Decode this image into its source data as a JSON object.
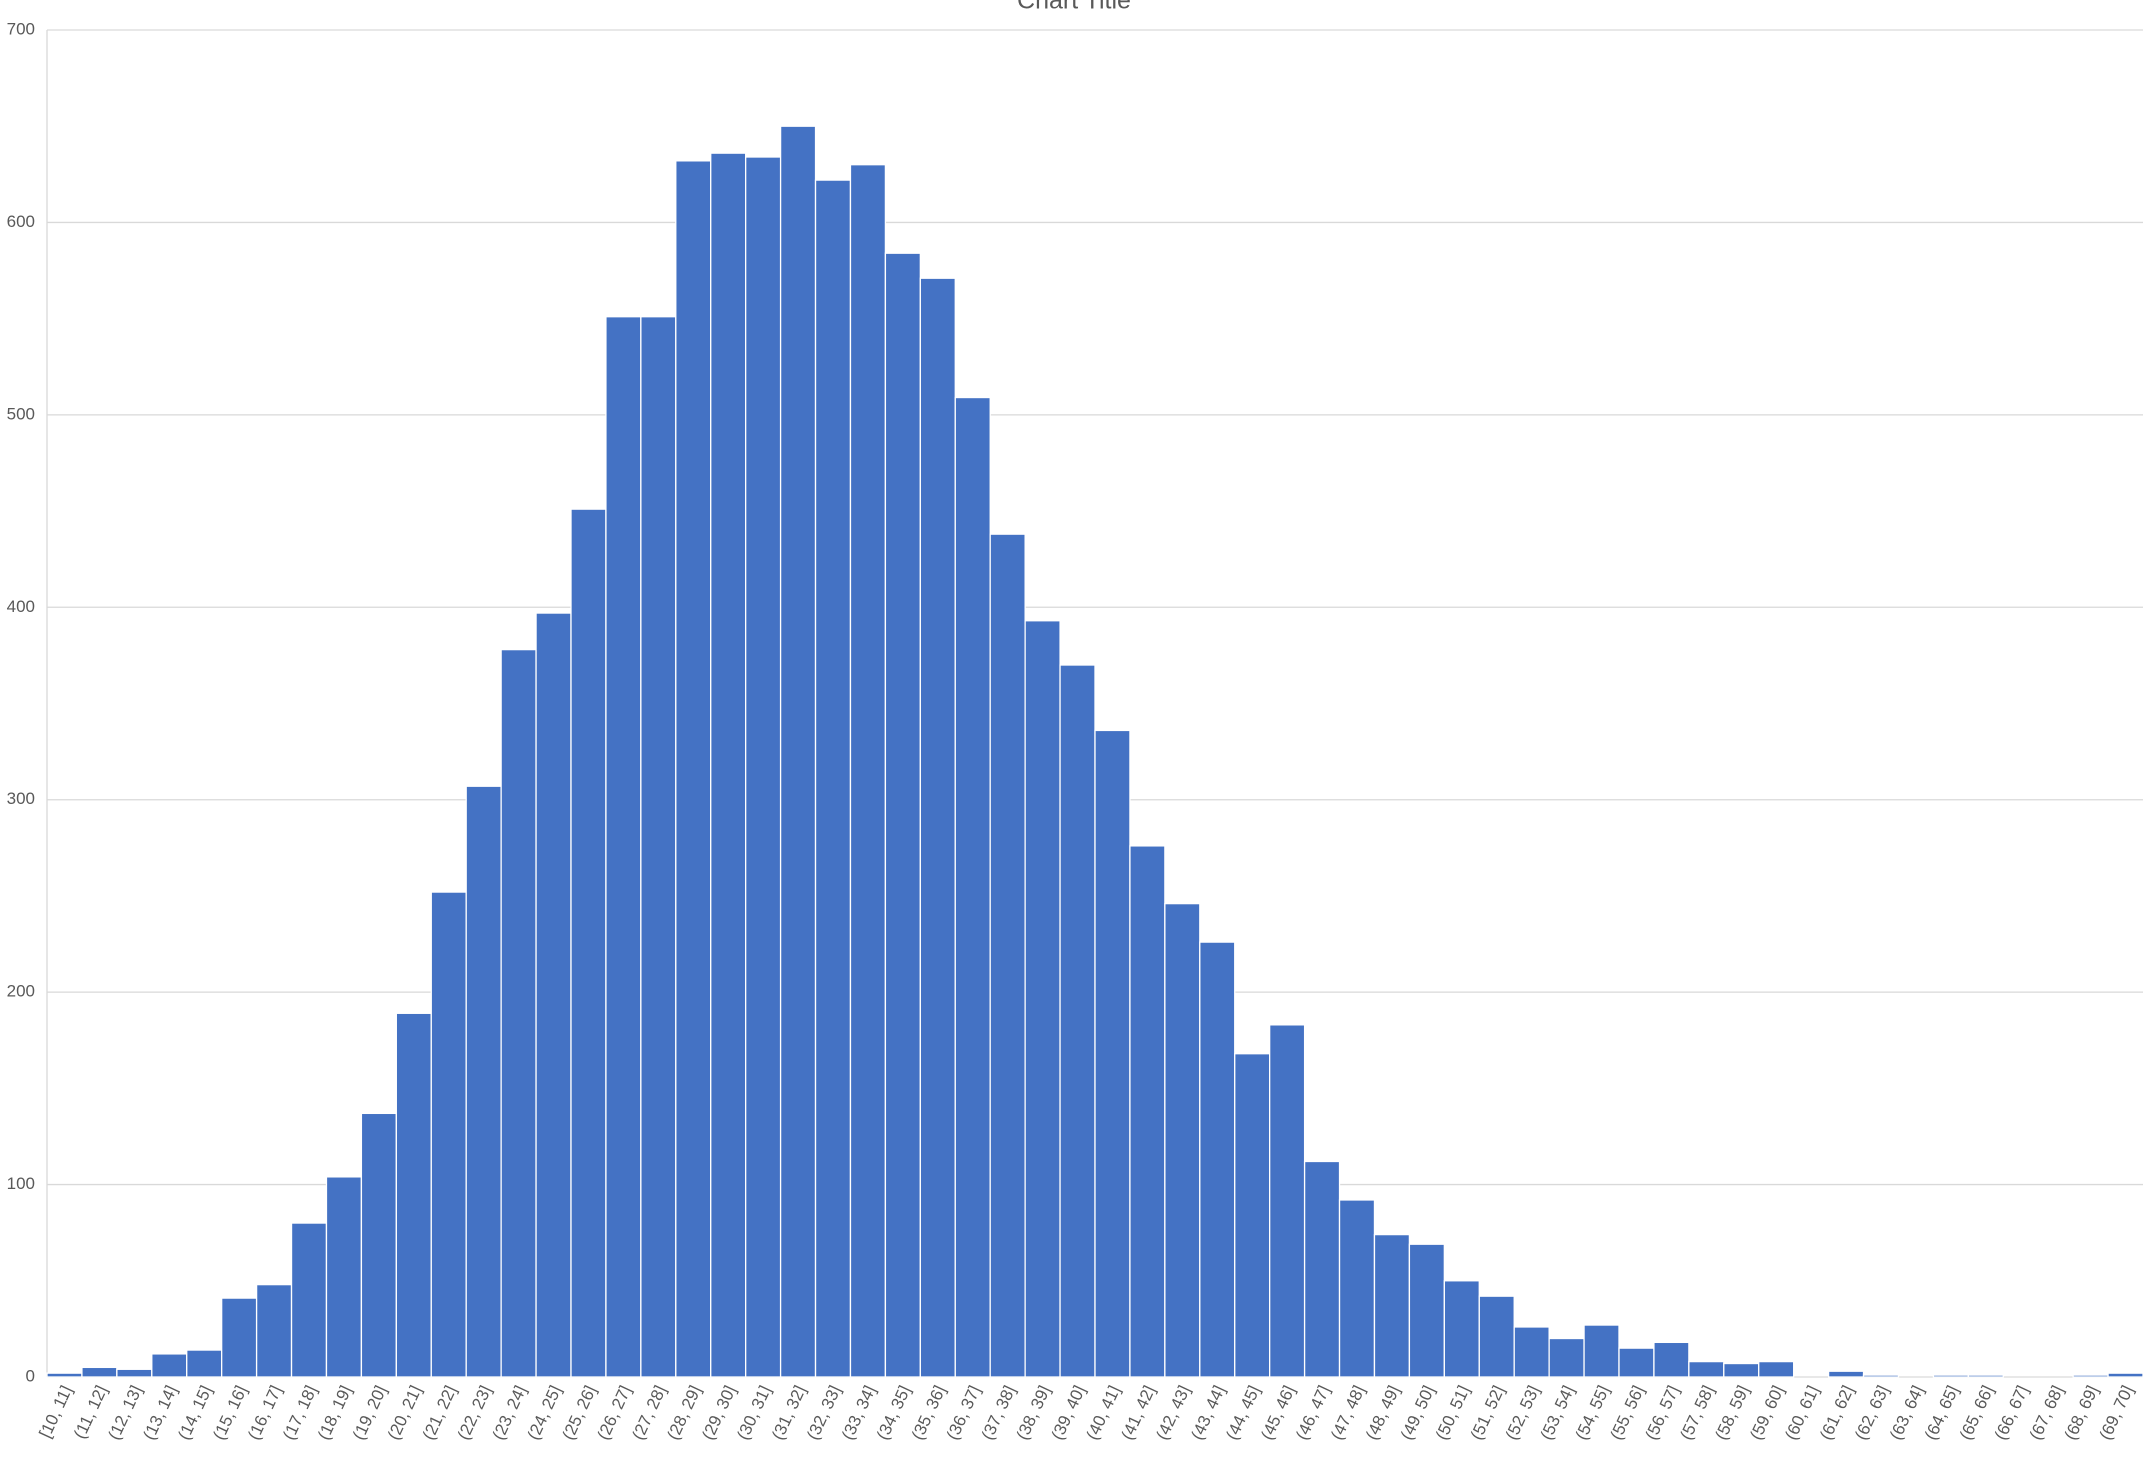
{
  "chart_data": {
    "type": "bar",
    "title": "Chart Title",
    "categories": [
      "[10, 11]",
      "(11, 12]",
      "(12, 13]",
      "(13, 14]",
      "(14, 15]",
      "(15, 16]",
      "(16, 17]",
      "(17, 18]",
      "(18, 19]",
      "(19, 20]",
      "(20, 21]",
      "(21, 22]",
      "(22, 23]",
      "(23, 24]",
      "(24, 25]",
      "(25, 26]",
      "(26, 27]",
      "(27, 28]",
      "(28, 29]",
      "(29, 30]",
      "(30, 31]",
      "(31, 32]",
      "(32, 33]",
      "(33, 34]",
      "(34, 35]",
      "(35, 36]",
      "(36, 37]",
      "(37, 38]",
      "(38, 39]",
      "(39, 40]",
      "(40, 41]",
      "(41, 42]",
      "(42, 43]",
      "(43, 44]",
      "(44, 45]",
      "(45, 46]",
      "(46, 47]",
      "(47, 48]",
      "(48, 49]",
      "(49, 50]",
      "(50, 51]",
      "(51, 52]",
      "(52, 53]",
      "(53, 54]",
      "(54, 55]",
      "(55, 56]",
      "(56, 57]",
      "(57, 58]",
      "(58, 59]",
      "(59, 60]",
      "(60, 61]",
      "(61, 62]",
      "(62, 63]",
      "(63, 64]",
      "(64, 65]",
      "(65, 66]",
      "(66, 67]",
      "(67, 68]",
      "(68, 69]",
      "(69, 70]"
    ],
    "values": [
      2,
      5,
      4,
      12,
      14,
      41,
      48,
      80,
      104,
      137,
      189,
      252,
      307,
      378,
      397,
      451,
      551,
      551,
      632,
      636,
      634,
      650,
      622,
      630,
      584,
      571,
      509,
      438,
      393,
      370,
      336,
      276,
      246,
      226,
      168,
      183,
      112,
      92,
      74,
      69,
      50,
      42,
      26,
      20,
      27,
      15,
      18,
      8,
      7,
      8,
      0,
      3,
      1,
      0,
      1,
      1,
      0,
      0,
      1,
      2
    ],
    "color": "#4472c4",
    "ylim": [
      0,
      700
    ],
    "yticks": [
      0,
      100,
      200,
      300,
      400,
      500,
      600,
      700
    ],
    "grid": true
  }
}
